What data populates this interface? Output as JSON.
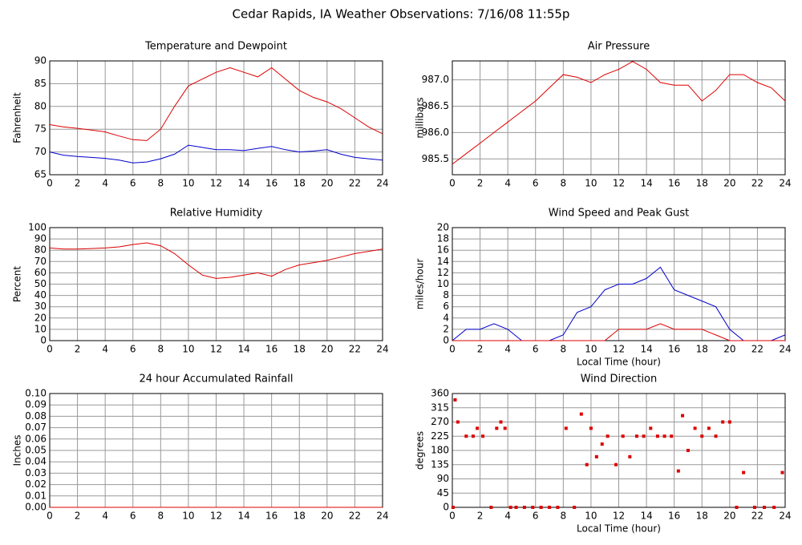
{
  "title": "Cedar Rapids, IA Weather Observations: 7/16/08 11:55p",
  "chart_data": [
    {
      "type": "line",
      "title": "Temperature and Dewpoint",
      "ylabel": "Fahrenheit",
      "x": [
        0,
        1,
        2,
        3,
        4,
        5,
        6,
        7,
        8,
        9,
        10,
        11,
        12,
        13,
        14,
        15,
        16,
        17,
        18,
        19,
        20,
        21,
        22,
        23,
        24
      ],
      "series": [
        {
          "color": "#dd0000",
          "values": [
            76,
            75.5,
            75.2,
            74.8,
            74.4,
            73.5,
            72.7,
            72.5,
            75,
            80,
            84.5,
            86,
            87.5,
            88.5,
            87.5,
            86.5,
            88.5,
            86,
            83.5,
            82,
            81,
            79.5,
            77.5,
            75.5,
            74
          ]
        },
        {
          "color": "#0000cc",
          "values": [
            70,
            69.3,
            69,
            68.8,
            68.6,
            68.2,
            67.6,
            67.8,
            68.5,
            69.5,
            71.5,
            71,
            70.5,
            70.5,
            70.3,
            70.8,
            71.2,
            70.5,
            70,
            70.2,
            70.5,
            69.5,
            68.8,
            68.5,
            68.2
          ]
        }
      ],
      "xlim": [
        0,
        24
      ],
      "xticks": [
        0,
        2,
        4,
        6,
        8,
        10,
        12,
        14,
        16,
        18,
        20,
        22,
        24
      ],
      "ylim": [
        65,
        90
      ],
      "yticks": [
        65,
        70,
        75,
        80,
        85,
        90
      ],
      "grid": true
    },
    {
      "type": "line",
      "title": "Air Pressure",
      "ylabel": "millibars",
      "x": [
        0,
        1,
        2,
        3,
        4,
        5,
        6,
        7,
        8,
        9,
        10,
        11,
        12,
        13,
        14,
        15,
        16,
        17,
        18,
        19,
        20,
        21,
        22,
        23,
        24
      ],
      "series": [
        {
          "color": "#dd0000",
          "values": [
            985.4,
            985.6,
            985.8,
            986.0,
            986.2,
            986.4,
            986.6,
            986.85,
            987.1,
            987.05,
            986.95,
            987.1,
            987.2,
            987.35,
            987.2,
            986.95,
            986.9,
            986.9,
            986.6,
            986.8,
            987.1,
            987.1,
            986.95,
            986.85,
            986.6
          ]
        }
      ],
      "xlim": [
        0,
        24
      ],
      "xticks": [
        0,
        2,
        4,
        6,
        8,
        10,
        12,
        14,
        16,
        18,
        20,
        22,
        24
      ],
      "ylim": [
        985.2,
        987.36
      ],
      "yticks": [
        985.5,
        {
          "value": 986,
          "label": "986.0"
        },
        986.5,
        {
          "value": 987,
          "label": "987.0"
        }
      ],
      "grid": true
    },
    {
      "type": "line",
      "title": "Relative Humidity",
      "ylabel": "Percent",
      "x": [
        0,
        1,
        2,
        3,
        4,
        5,
        6,
        7,
        8,
        9,
        10,
        11,
        12,
        13,
        14,
        15,
        16,
        17,
        18,
        19,
        20,
        21,
        22,
        23,
        24
      ],
      "series": [
        {
          "color": "#dd0000",
          "values": [
            82,
            81,
            81,
            81.5,
            82,
            83,
            85,
            86.5,
            84,
            77,
            67,
            58,
            55,
            56,
            58,
            60,
            57,
            63,
            67,
            69,
            71,
            74,
            77,
            79,
            81
          ]
        }
      ],
      "xlim": [
        0,
        24
      ],
      "xticks": [
        0,
        2,
        4,
        6,
        8,
        10,
        12,
        14,
        16,
        18,
        20,
        22,
        24
      ],
      "ylim": [
        0,
        100
      ],
      "yticks": [
        0,
        10,
        20,
        30,
        40,
        50,
        60,
        70,
        80,
        90,
        100
      ],
      "grid": true
    },
    {
      "type": "line",
      "title": "Wind Speed and Peak Gust",
      "ylabel": "miles/hour",
      "xlabel": "Local Time (hour)",
      "x": [
        0,
        1,
        2,
        3,
        4,
        5,
        6,
        7,
        8,
        9,
        10,
        11,
        12,
        13,
        14,
        15,
        16,
        17,
        18,
        19,
        20,
        21,
        22,
        23,
        24
      ],
      "series": [
        {
          "color": "#0000cc",
          "values": [
            0,
            2,
            2,
            3,
            2,
            0,
            0,
            0,
            1,
            5,
            6,
            9,
            10,
            10,
            11,
            13,
            9,
            8,
            7,
            6,
            2,
            0,
            0,
            0,
            1
          ]
        },
        {
          "color": "#dd0000",
          "values": [
            0,
            0,
            0,
            0,
            0,
            0,
            0,
            0,
            0,
            0,
            0,
            0,
            2,
            2,
            2,
            3,
            2,
            2,
            2,
            1,
            0,
            0,
            0,
            0,
            0
          ]
        }
      ],
      "xlim": [
        0,
        24
      ],
      "xticks": [
        0,
        2,
        4,
        6,
        8,
        10,
        12,
        14,
        16,
        18,
        20,
        22,
        24
      ],
      "ylim": [
        0,
        20
      ],
      "yticks": [
        0,
        2,
        4,
        6,
        8,
        10,
        12,
        14,
        16,
        18,
        20
      ],
      "grid": true
    },
    {
      "type": "line",
      "title": "24 hour Accumulated Rainfall",
      "ylabel": "Inches",
      "x": [
        0,
        1,
        2,
        3,
        4,
        5,
        6,
        7,
        8,
        9,
        10,
        11,
        12,
        13,
        14,
        15,
        16,
        17,
        18,
        19,
        20,
        21,
        22,
        23,
        24
      ],
      "series": [
        {
          "color": "#dd0000",
          "values": [
            0,
            0,
            0,
            0,
            0,
            0,
            0,
            0,
            0,
            0,
            0,
            0,
            0,
            0,
            0,
            0,
            0,
            0,
            0,
            0,
            0,
            0,
            0,
            0,
            0
          ]
        }
      ],
      "xlim": [
        0,
        24
      ],
      "xticks": [
        0,
        2,
        4,
        6,
        8,
        10,
        12,
        14,
        16,
        18,
        20,
        22,
        24
      ],
      "ylim": [
        0,
        0.1
      ],
      "yticks": [
        {
          "value": 0,
          "label": "0.00"
        },
        {
          "value": 0.01,
          "label": "0.01"
        },
        {
          "value": 0.02,
          "label": "0.02"
        },
        {
          "value": 0.03,
          "label": "0.03"
        },
        {
          "value": 0.04,
          "label": "0.04"
        },
        {
          "value": 0.05,
          "label": "0.05"
        },
        {
          "value": 0.06,
          "label": "0.06"
        },
        {
          "value": 0.07,
          "label": "0.07"
        },
        {
          "value": 0.08,
          "label": "0.08"
        },
        {
          "value": 0.09,
          "label": "0.09"
        },
        {
          "value": 0.1,
          "label": "0.10"
        }
      ],
      "grid": true
    },
    {
      "type": "scatter",
      "title": "Wind Direction",
      "ylabel": "degrees",
      "xlabel": "Local Time (hour)",
      "x": [
        0.05,
        0.2,
        0.4,
        1,
        1.5,
        1.8,
        2.2,
        2.8,
        3.2,
        3.5,
        3.8,
        4.2,
        4.6,
        5.2,
        5.8,
        6.4,
        7,
        7.6,
        8.2,
        8.8,
        9.3,
        9.7,
        10,
        10.4,
        10.8,
        11.2,
        11.8,
        12.3,
        12.8,
        13.3,
        13.8,
        14.3,
        14.8,
        15.3,
        15.8,
        16.3,
        16.6,
        17,
        17.5,
        18,
        18.5,
        19,
        19.5,
        20,
        20.5,
        21,
        21.8,
        22.5,
        23.2,
        23.8
      ],
      "series": [
        {
          "color": "#dd0000",
          "values": [
            0,
            340,
            270,
            225,
            225,
            250,
            225,
            0,
            250,
            270,
            250,
            0,
            0,
            0,
            0,
            0,
            0,
            0,
            250,
            0,
            295,
            135,
            250,
            160,
            200,
            225,
            135,
            225,
            160,
            225,
            225,
            250,
            225,
            225,
            225,
            115,
            290,
            180,
            250,
            225,
            250,
            225,
            270,
            270,
            0,
            110,
            0,
            0,
            0,
            110
          ]
        }
      ],
      "xlim": [
        0,
        24
      ],
      "xticks": [
        0,
        2,
        4,
        6,
        8,
        10,
        12,
        14,
        16,
        18,
        20,
        22,
        24
      ],
      "ylim": [
        0,
        360
      ],
      "yticks": [
        0,
        45,
        90,
        135,
        180,
        225,
        270,
        315,
        360
      ],
      "grid": true
    }
  ]
}
